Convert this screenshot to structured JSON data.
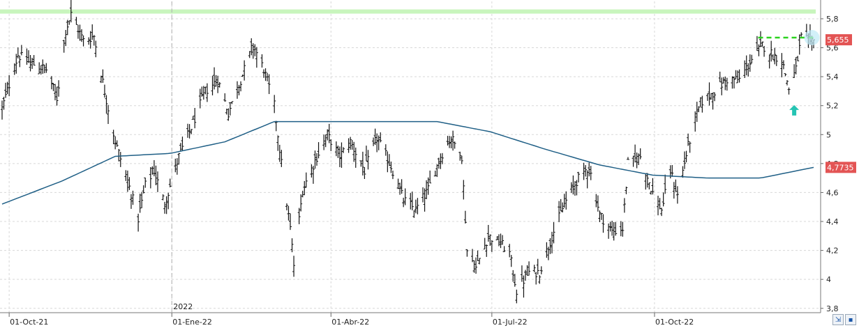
{
  "chart_data": {
    "type": "ohlc",
    "x_range": [
      "2021-09-27",
      "2022-12-30"
    ],
    "ylim": [
      3.77,
      5.92
    ],
    "y_ticks": [
      "3,8",
      "4",
      "4,2",
      "4,4",
      "4,6",
      "4,8",
      "5",
      "5,2",
      "5,4",
      "5,6",
      "5,8"
    ],
    "x_ticks": [
      "01-Oct-21",
      "01-Ene-22",
      "01-Abr-22",
      "01-Jul-22",
      "01-Oct-22"
    ],
    "year_marker": "2022",
    "grid": true,
    "last_price": 5.655,
    "last_price_label": "5,655",
    "ma_last": 4.7735,
    "ma_last_label": "4,7735",
    "resistance_level": 5.85,
    "recent_high_level": 5.67,
    "close_anchors": [
      [
        "2021-09-27",
        5.18
      ],
      [
        "2021-10-06",
        5.55
      ],
      [
        "2021-10-12",
        5.5
      ],
      [
        "2021-10-22",
        5.45
      ],
      [
        "2021-10-28",
        5.25
      ],
      [
        "2021-11-02",
        5.72
      ],
      [
        "2021-11-05",
        5.83
      ],
      [
        "2021-11-12",
        5.65
      ],
      [
        "2021-11-18",
        5.68
      ],
      [
        "2021-11-24",
        5.3
      ],
      [
        "2021-11-30",
        4.95
      ],
      [
        "2021-12-07",
        4.68
      ],
      [
        "2021-12-13",
        4.42
      ],
      [
        "2021-12-17",
        4.65
      ],
      [
        "2021-12-22",
        4.75
      ],
      [
        "2021-12-28",
        4.52
      ],
      [
        "2022-01-05",
        4.85
      ],
      [
        "2022-01-12",
        5.05
      ],
      [
        "2022-01-20",
        5.3
      ],
      [
        "2022-01-27",
        5.38
      ],
      [
        "2022-02-02",
        5.15
      ],
      [
        "2022-02-09",
        5.38
      ],
      [
        "2022-02-16",
        5.62
      ],
      [
        "2022-02-22",
        5.45
      ],
      [
        "2022-02-28",
        5.2
      ],
      [
        "2022-03-04",
        4.8
      ],
      [
        "2022-03-09",
        4.35
      ],
      [
        "2022-03-11",
        4.1
      ],
      [
        "2022-03-16",
        4.62
      ],
      [
        "2022-03-23",
        4.82
      ],
      [
        "2022-03-30",
        5.0
      ],
      [
        "2022-04-06",
        4.85
      ],
      [
        "2022-04-12",
        4.95
      ],
      [
        "2022-04-20",
        4.75
      ],
      [
        "2022-04-27",
        4.98
      ],
      [
        "2022-05-05",
        4.78
      ],
      [
        "2022-05-12",
        4.55
      ],
      [
        "2022-05-19",
        4.48
      ],
      [
        "2022-05-26",
        4.62
      ],
      [
        "2022-06-02",
        4.85
      ],
      [
        "2022-06-08",
        4.98
      ],
      [
        "2022-06-14",
        4.85
      ],
      [
        "2022-06-17",
        4.2
      ],
      [
        "2022-06-22",
        4.08
      ],
      [
        "2022-06-29",
        4.3
      ],
      [
        "2022-07-06",
        4.25
      ],
      [
        "2022-07-11",
        4.18
      ],
      [
        "2022-07-15",
        3.92
      ],
      [
        "2022-07-22",
        4.05
      ],
      [
        "2022-07-28",
        4.05
      ],
      [
        "2022-08-04",
        4.3
      ],
      [
        "2022-08-11",
        4.52
      ],
      [
        "2022-08-18",
        4.68
      ],
      [
        "2022-08-25",
        4.78
      ],
      [
        "2022-08-31",
        4.45
      ],
      [
        "2022-09-07",
        4.33
      ],
      [
        "2022-09-13",
        4.35
      ],
      [
        "2022-09-16",
        4.8
      ],
      [
        "2022-09-23",
        4.85
      ],
      [
        "2022-09-30",
        4.6
      ],
      [
        "2022-10-05",
        4.48
      ],
      [
        "2022-10-10",
        4.75
      ],
      [
        "2022-10-14",
        4.58
      ],
      [
        "2022-10-20",
        4.92
      ],
      [
        "2022-10-27",
        5.22
      ],
      [
        "2022-11-04",
        5.3
      ],
      [
        "2022-11-11",
        5.38
      ],
      [
        "2022-11-18",
        5.38
      ],
      [
        "2022-11-25",
        5.52
      ],
      [
        "2022-12-01",
        5.62
      ],
      [
        "2022-12-07",
        5.55
      ],
      [
        "2022-12-12",
        5.52
      ],
      [
        "2022-12-16",
        5.32
      ],
      [
        "2022-12-20",
        5.45
      ],
      [
        "2022-12-23",
        5.67
      ],
      [
        "2022-12-28",
        5.64
      ],
      [
        "2022-12-30",
        5.655
      ]
    ],
    "ma_anchors": [
      [
        "2021-09-27",
        4.52
      ],
      [
        "2021-10-31",
        4.68
      ],
      [
        "2021-11-30",
        4.85
      ],
      [
        "2021-12-31",
        4.87
      ],
      [
        "2022-01-31",
        4.95
      ],
      [
        "2022-02-28",
        5.09
      ],
      [
        "2022-03-31",
        5.09
      ],
      [
        "2022-04-30",
        5.09
      ],
      [
        "2022-05-31",
        5.09
      ],
      [
        "2022-06-30",
        5.02
      ],
      [
        "2022-07-31",
        4.9
      ],
      [
        "2022-08-31",
        4.79
      ],
      [
        "2022-09-30",
        4.72
      ],
      [
        "2022-10-31",
        4.7
      ],
      [
        "2022-11-30",
        4.7
      ],
      [
        "2022-12-30",
        4.7735
      ]
    ],
    "signal_arrow": {
      "date": "2022-12-19",
      "value": 5.17
    },
    "highlight_point": {
      "date": "2022-12-29",
      "value": 5.67
    }
  },
  "colors": {
    "bars": "#111111",
    "moving_average": "#1f5f86",
    "resistance_band": "#c8f5bd",
    "recent_high_line": "#2bd21e",
    "grid": "#d8d8d8",
    "price_badge": "#e35454",
    "ma_badge": "#e35454",
    "arrow": "#25c4b3",
    "highlight_circle": "#bfe9f7",
    "year_divider": "#b0b0b0"
  },
  "toolbar": {
    "icons": [
      "fit-view-icon",
      "save-icon"
    ]
  }
}
